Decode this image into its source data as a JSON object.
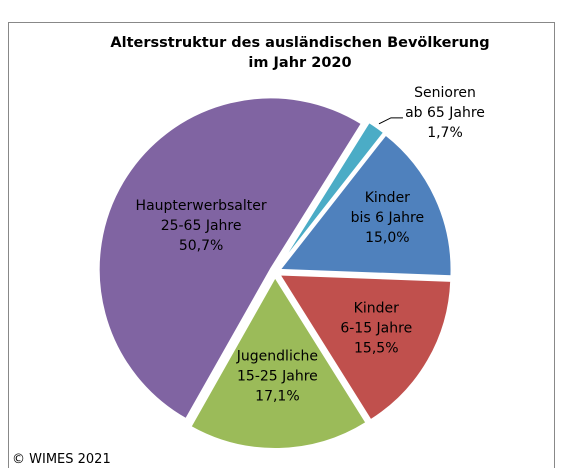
{
  "chart_data": {
    "type": "pie",
    "title": "Altersstruktur des ausländischen Bevölkerung",
    "subtitle": "im Jahr 2020",
    "categories": [
      "Senioren ab 65 Jahre",
      "Kinder bis 6 Jahre",
      "Kinder 6-15 Jahre",
      "Jugendliche 15-25 Jahre",
      "Haupterwerbsalter 25-65 Jahre"
    ],
    "values": [
      1.7,
      15.0,
      15.5,
      17.1,
      50.7
    ],
    "value_labels": [
      "1,7%",
      "15,0%",
      "15,5%",
      "17,1%",
      "50,7%"
    ],
    "colors": [
      "#4bacc6",
      "#4f81bd",
      "#c0504d",
      "#9bbb59",
      "#8064a2"
    ],
    "footer": "© WIMES 2021"
  }
}
